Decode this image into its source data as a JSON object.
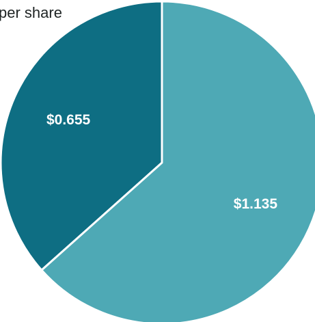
{
  "chart_data": {
    "type": "pie",
    "title": "per share",
    "slices": [
      {
        "label": "$0.655",
        "value": 0.655,
        "color": "#0e6e83"
      },
      {
        "label": "$1.135",
        "value": 1.135,
        "color": "#4ea9b5"
      }
    ],
    "start_angle_deg": 0,
    "separator_color": "#ffffff"
  }
}
